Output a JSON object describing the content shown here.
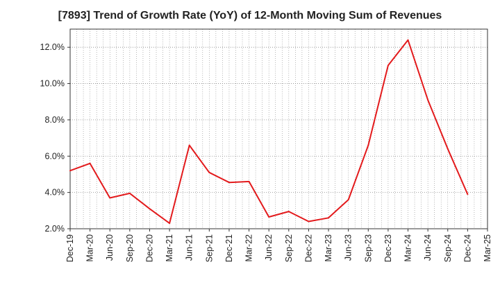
{
  "chart_data": {
    "type": "line",
    "title": "[7893]  Trend of Growth Rate (YoY) of 12-Month Moving Sum of Revenues",
    "xlabel": "",
    "ylabel": "",
    "x": [
      "Dec-19",
      "Mar-20",
      "Jun-20",
      "Sep-20",
      "Dec-20",
      "Mar-21",
      "Jun-21",
      "Sep-21",
      "Dec-21",
      "Mar-22",
      "Jun-22",
      "Sep-22",
      "Dec-22",
      "Mar-23",
      "Jun-23",
      "Sep-23",
      "Dec-23",
      "Mar-24",
      "Jun-24",
      "Sep-24",
      "Dec-24",
      "Mar-25"
    ],
    "series": [
      {
        "values": [
          5.2,
          5.6,
          3.7,
          3.95,
          3.1,
          2.3,
          6.6,
          5.1,
          4.55,
          4.6,
          2.65,
          2.95,
          2.4,
          2.6,
          3.6,
          6.6,
          11.0,
          12.4,
          9.1,
          6.4,
          3.9,
          null
        ],
        "color": "#e31a1c"
      }
    ],
    "ylim": [
      2.0,
      13.0
    ],
    "yticks": [
      2.0,
      4.0,
      6.0,
      8.0,
      10.0,
      12.0
    ],
    "ytick_labels": [
      "2.0%",
      "4.0%",
      "6.0%",
      "8.0%",
      "10.0%",
      "12.0%"
    ],
    "grid": true,
    "colors": {
      "line": "#e31a1c",
      "grid": "#888888",
      "axis": "#333333"
    }
  }
}
